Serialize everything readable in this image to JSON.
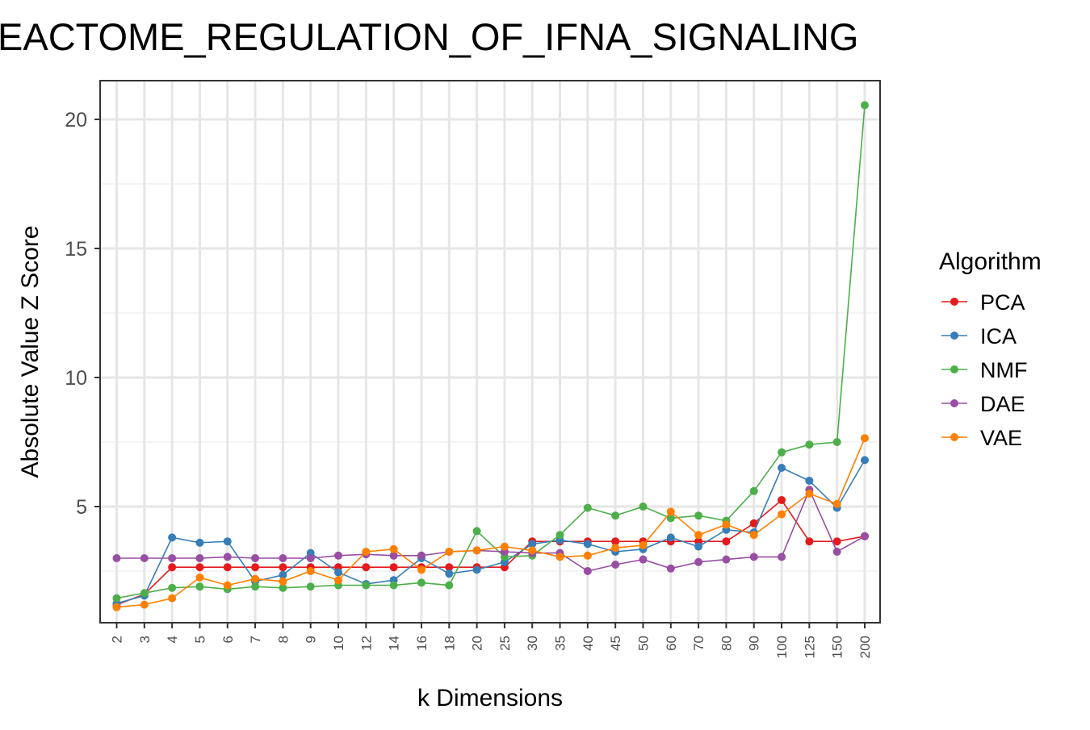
{
  "chart_data": {
    "type": "line",
    "title": "EACTOME_REGULATION_OF_IFNA_SIGNALING",
    "xlabel": "k Dimensions",
    "ylabel": "Absolute Value Z Score",
    "categories": [
      "2",
      "3",
      "4",
      "5",
      "6",
      "7",
      "8",
      "9",
      "10",
      "12",
      "14",
      "16",
      "18",
      "20",
      "25",
      "30",
      "35",
      "40",
      "45",
      "50",
      "60",
      "70",
      "80",
      "90",
      "100",
      "125",
      "150",
      "200"
    ],
    "y_ticks": [
      5,
      10,
      15,
      20
    ],
    "ylim": [
      0.5,
      21.5
    ],
    "grid": true,
    "legend": {
      "title": "Algorithm",
      "position": "right"
    },
    "series": [
      {
        "name": "PCA",
        "color": "#e41a1c",
        "values": [
          1.2,
          1.6,
          2.65,
          2.65,
          2.65,
          2.65,
          2.65,
          2.65,
          2.65,
          2.65,
          2.65,
          2.65,
          2.65,
          2.65,
          2.65,
          3.65,
          3.65,
          3.65,
          3.65,
          3.65,
          3.65,
          3.65,
          3.65,
          4.35,
          5.25,
          3.65,
          3.65,
          3.85
        ]
      },
      {
        "name": "ICA",
        "color": "#377eb8",
        "values": [
          1.25,
          1.55,
          3.8,
          3.6,
          3.65,
          2.1,
          2.35,
          3.2,
          2.45,
          2.0,
          2.15,
          3.0,
          2.4,
          2.55,
          2.85,
          3.55,
          3.7,
          3.55,
          3.25,
          3.35,
          3.8,
          3.45,
          4.1,
          4.0,
          6.5,
          6.0,
          4.95,
          6.8
        ]
      },
      {
        "name": "NMF",
        "color": "#4daf4a",
        "values": [
          1.45,
          1.65,
          1.85,
          1.9,
          1.8,
          1.9,
          1.85,
          1.9,
          1.95,
          1.95,
          1.95,
          2.05,
          1.95,
          4.05,
          3.05,
          3.1,
          3.9,
          4.95,
          4.65,
          5.0,
          4.55,
          4.65,
          4.45,
          5.6,
          7.1,
          7.4,
          7.5,
          20.55
        ]
      },
      {
        "name": "DAE",
        "color": "#984ea3",
        "values": [
          3.0,
          3.0,
          3.0,
          3.0,
          3.05,
          3.0,
          3.0,
          3.0,
          3.1,
          3.15,
          3.1,
          3.1,
          3.25,
          3.3,
          3.25,
          3.2,
          3.2,
          2.5,
          2.75,
          2.95,
          2.6,
          2.85,
          2.95,
          3.05,
          3.05,
          5.65,
          3.25,
          3.85
        ]
      },
      {
        "name": "VAE",
        "color": "#ff7f00",
        "values": [
          1.1,
          1.2,
          1.45,
          2.25,
          1.95,
          2.2,
          2.1,
          2.5,
          2.15,
          3.25,
          3.35,
          2.55,
          3.25,
          3.3,
          3.45,
          3.3,
          3.05,
          3.1,
          3.4,
          3.5,
          4.8,
          3.9,
          4.3,
          3.9,
          4.7,
          5.5,
          5.1,
          7.65
        ]
      }
    ]
  }
}
